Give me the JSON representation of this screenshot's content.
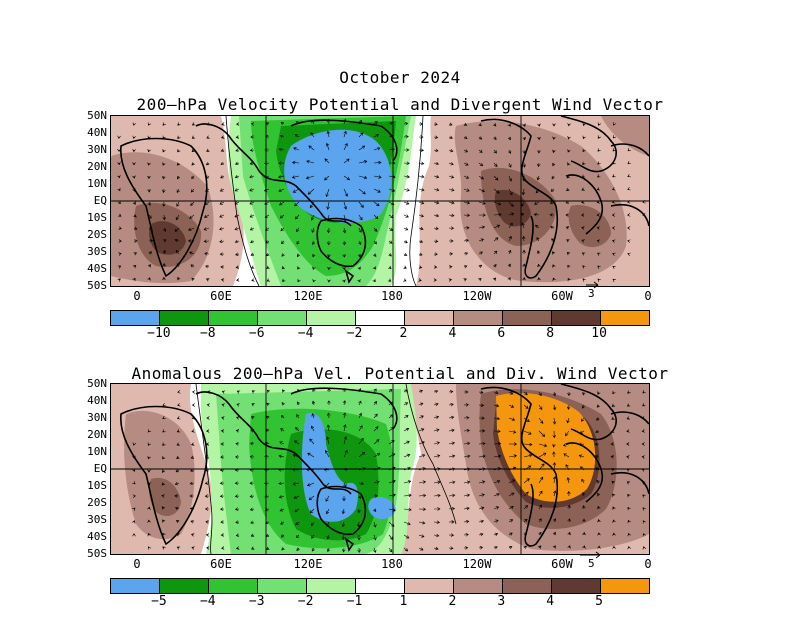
{
  "title": "October 2024",
  "panel1": {
    "title": "200–hPa Velocity Potential and Divergent Wind Vector",
    "ref_vector": "3",
    "colorbar_ticks": [
      "−10",
      "−8",
      "−6",
      "−4",
      "−2",
      "2",
      "4",
      "6",
      "8",
      "10"
    ]
  },
  "panel2": {
    "title": "Anomalous 200–hPa Vel. Potential and Div. Wind Vector",
    "ref_vector": "5",
    "colorbar_ticks": [
      "−5",
      "−4",
      "−3",
      "−2",
      "−1",
      "1",
      "2",
      "3",
      "4",
      "5"
    ]
  },
  "lat_labels": [
    "50N",
    "40N",
    "30N",
    "20N",
    "10N",
    "EQ",
    "10S",
    "20S",
    "30S",
    "40S",
    "50S"
  ],
  "lon_labels": [
    "0",
    "60E",
    "120E",
    "180",
    "120W",
    "60W",
    "0"
  ],
  "colorbar_colors": [
    "#5aa5ee",
    "#0f960f",
    "#32c332",
    "#73e073",
    "#b4f5a5",
    "#ffffff",
    "#e0b9ae",
    "#b68c82",
    "#8b6255",
    "#603a30",
    "#f5960f"
  ]
}
